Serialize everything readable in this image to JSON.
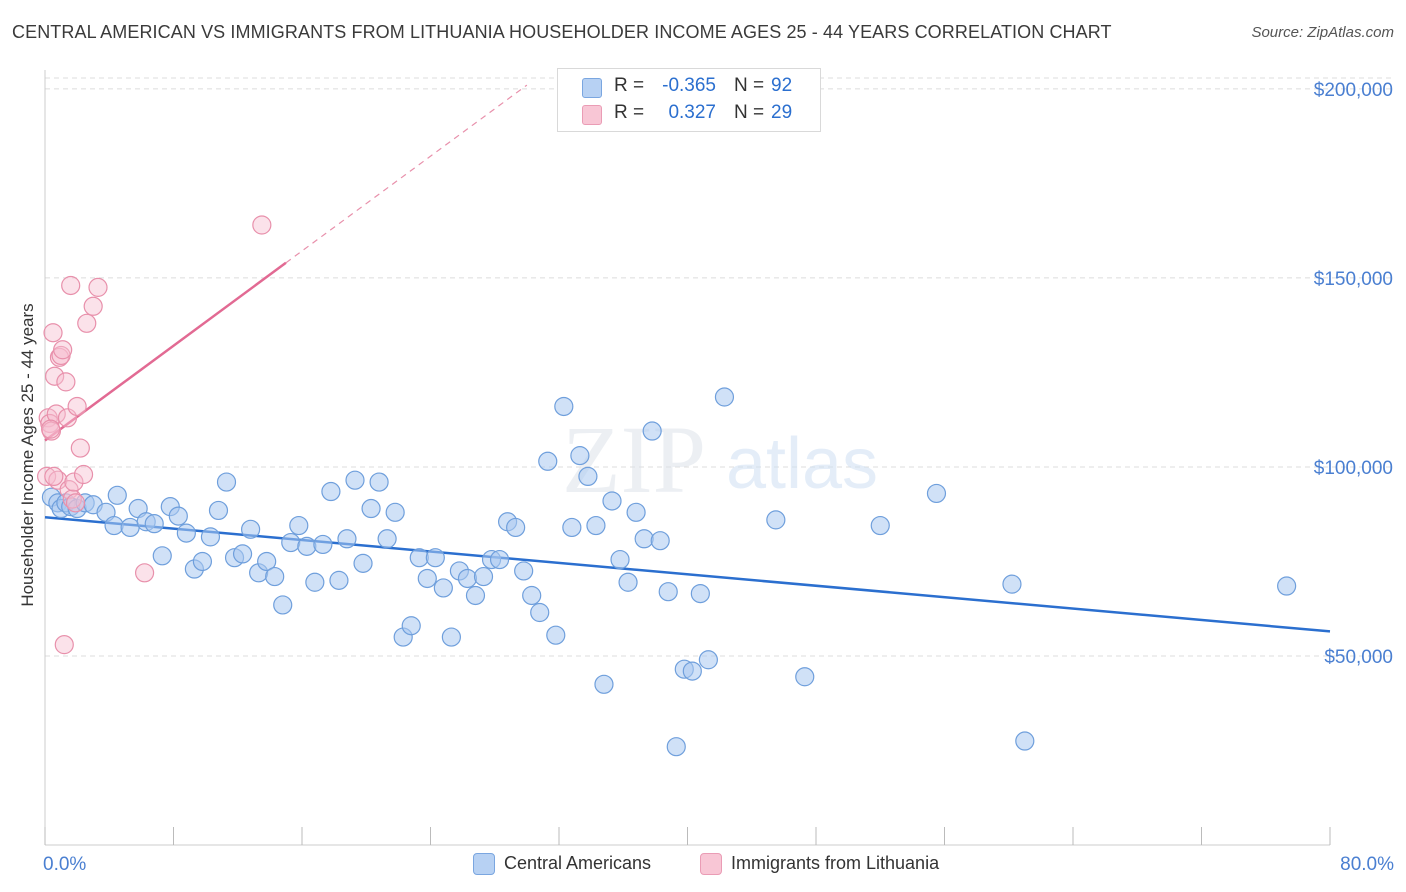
{
  "header": {
    "title": "CENTRAL AMERICAN VS IMMIGRANTS FROM LITHUANIA HOUSEHOLDER INCOME AGES 25 - 44 YEARS CORRELATION CHART",
    "source": "Source: ZipAtlas.com"
  },
  "watermark": {
    "zip": "ZIP",
    "atlas": "atlas"
  },
  "stats": {
    "r_label": "R =",
    "n_label": "N =",
    "rows": [
      {
        "r": "-0.365",
        "n": "92"
      },
      {
        "r": "0.327",
        "n": "29"
      }
    ]
  },
  "legend": {
    "items": [
      {
        "label": "Central Americans"
      },
      {
        "label": "Immigrants from Lithuania"
      }
    ]
  },
  "colors": {
    "blue_fill": "#a9c8f0",
    "blue_stroke": "#6f9fdc",
    "blue_line": "#2b6fcf",
    "pink_fill": "#f6bfd0",
    "pink_stroke": "#e890ab",
    "pink_line": "#e26a93",
    "axis_text": "#4a7fd1",
    "grid": "#dcdcdc"
  },
  "chart_data": {
    "type": "scatter",
    "title": "CENTRAL AMERICAN VS IMMIGRANTS FROM LITHUANIA HOUSEHOLDER INCOME AGES 25 - 44 YEARS CORRELATION CHART",
    "xlabel": "",
    "ylabel": "Householder Income Ages 25 - 44 years",
    "x_tick_labels": [
      "0.0%",
      "80.0%"
    ],
    "y_tick_labels": [
      "$50,000",
      "$100,000",
      "$150,000",
      "$200,000"
    ],
    "y_ticks": [
      50000,
      100000,
      150000,
      200000
    ],
    "xlim": [
      0,
      80
    ],
    "ylim": [
      0,
      205000
    ],
    "grid": true,
    "legend_position": "bottom-center",
    "series": [
      {
        "name": "Central Americans",
        "r": -0.365,
        "n": 92,
        "trend": {
          "x": [
            0,
            80
          ],
          "y": [
            86700,
            56500
          ]
        },
        "points": [
          [
            0.4,
            92000
          ],
          [
            0.8,
            90500
          ],
          [
            1.0,
            89000
          ],
          [
            1.3,
            90500
          ],
          [
            1.6,
            89500
          ],
          [
            2.0,
            89000
          ],
          [
            2.5,
            90500
          ],
          [
            3.0,
            90000
          ],
          [
            3.8,
            88000
          ],
          [
            4.3,
            84500
          ],
          [
            4.5,
            92500
          ],
          [
            5.3,
            84000
          ],
          [
            5.8,
            89000
          ],
          [
            6.3,
            85500
          ],
          [
            6.8,
            85000
          ],
          [
            7.3,
            76500
          ],
          [
            7.8,
            89500
          ],
          [
            8.3,
            87000
          ],
          [
            8.8,
            82500
          ],
          [
            9.3,
            73000
          ],
          [
            9.8,
            75000
          ],
          [
            10.3,
            81500
          ],
          [
            10.8,
            88500
          ],
          [
            11.3,
            96000
          ],
          [
            11.8,
            76000
          ],
          [
            12.3,
            77000
          ],
          [
            12.8,
            83500
          ],
          [
            13.3,
            72000
          ],
          [
            13.8,
            75000
          ],
          [
            14.3,
            71000
          ],
          [
            14.8,
            63500
          ],
          [
            15.3,
            80000
          ],
          [
            15.8,
            84500
          ],
          [
            16.3,
            79000
          ],
          [
            16.8,
            69500
          ],
          [
            17.3,
            79500
          ],
          [
            17.8,
            93500
          ],
          [
            18.3,
            70000
          ],
          [
            18.8,
            81000
          ],
          [
            19.3,
            96500
          ],
          [
            19.8,
            74500
          ],
          [
            20.3,
            89000
          ],
          [
            20.8,
            96000
          ],
          [
            21.3,
            81000
          ],
          [
            21.8,
            88000
          ],
          [
            22.3,
            55000
          ],
          [
            22.8,
            58000
          ],
          [
            23.3,
            76000
          ],
          [
            23.8,
            70500
          ],
          [
            24.3,
            76000
          ],
          [
            24.8,
            68000
          ],
          [
            25.3,
            55000
          ],
          [
            25.8,
            72500
          ],
          [
            26.3,
            70500
          ],
          [
            26.8,
            66000
          ],
          [
            27.3,
            71000
          ],
          [
            27.8,
            75500
          ],
          [
            28.3,
            75500
          ],
          [
            28.8,
            85500
          ],
          [
            29.3,
            84000
          ],
          [
            29.8,
            72500
          ],
          [
            30.3,
            66000
          ],
          [
            30.8,
            61500
          ],
          [
            31.3,
            101500
          ],
          [
            31.8,
            55500
          ],
          [
            32.3,
            116000
          ],
          [
            32.8,
            84000
          ],
          [
            33.3,
            103000
          ],
          [
            33.8,
            97500
          ],
          [
            34.3,
            84500
          ],
          [
            34.8,
            42500
          ],
          [
            35.3,
            91000
          ],
          [
            35.8,
            75500
          ],
          [
            36.3,
            69500
          ],
          [
            36.8,
            88000
          ],
          [
            37.3,
            81000
          ],
          [
            37.8,
            109500
          ],
          [
            38.3,
            80500
          ],
          [
            38.8,
            67000
          ],
          [
            39.3,
            26000
          ],
          [
            39.8,
            46500
          ],
          [
            40.3,
            46000
          ],
          [
            40.8,
            66500
          ],
          [
            41.3,
            49000
          ],
          [
            42.3,
            118500
          ],
          [
            45.5,
            86000
          ],
          [
            47.3,
            44500
          ],
          [
            52.0,
            84500
          ],
          [
            55.5,
            93000
          ],
          [
            60.2,
            69000
          ],
          [
            61.0,
            27500
          ],
          [
            77.3,
            68500
          ]
        ]
      },
      {
        "name": "Immigrants from Lithuania",
        "r": 0.327,
        "n": 29,
        "trend": {
          "x": [
            0,
            15
          ],
          "y": [
            107000,
            154000
          ]
        },
        "trend_extension": {
          "x": [
            15,
            30
          ],
          "y": [
            154000,
            201000
          ]
        },
        "points": [
          [
            0.1,
            97500
          ],
          [
            0.2,
            113000
          ],
          [
            0.3,
            111500
          ],
          [
            0.4,
            109500
          ],
          [
            0.5,
            135500
          ],
          [
            0.6,
            124000
          ],
          [
            0.7,
            114000
          ],
          [
            0.8,
            96500
          ],
          [
            0.9,
            129000
          ],
          [
            1.0,
            129500
          ],
          [
            1.1,
            131000
          ],
          [
            1.2,
            53000
          ],
          [
            1.3,
            122500
          ],
          [
            1.4,
            113000
          ],
          [
            1.5,
            94000
          ],
          [
            1.6,
            148000
          ],
          [
            1.7,
            91500
          ],
          [
            1.8,
            96000
          ],
          [
            1.9,
            90500
          ],
          [
            2.0,
            116000
          ],
          [
            2.2,
            105000
          ],
          [
            2.4,
            98000
          ],
          [
            2.6,
            138000
          ],
          [
            3.0,
            142500
          ],
          [
            3.3,
            147500
          ],
          [
            6.2,
            72000
          ],
          [
            13.5,
            164000
          ],
          [
            0.35,
            110000
          ],
          [
            0.55,
            97500
          ]
        ]
      }
    ]
  }
}
